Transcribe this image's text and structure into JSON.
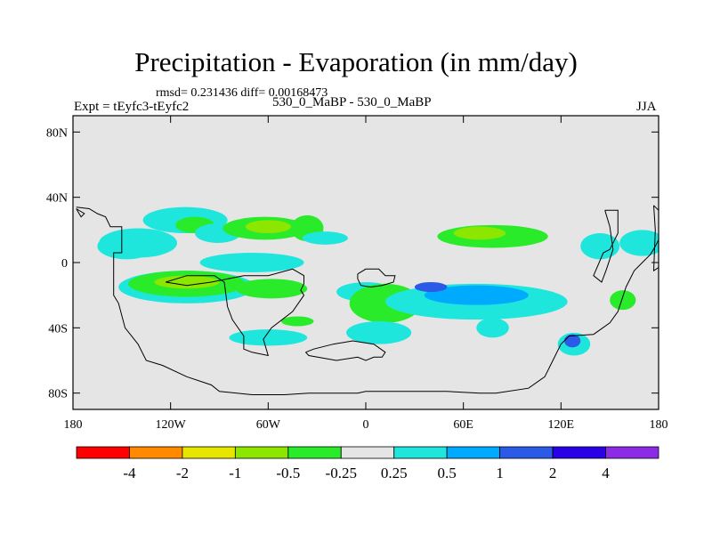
{
  "title": "Precipitation - Evaporation (in mm/day)",
  "stats_text": "rmsd= 0.231436 diff= 0.00168473",
  "experiment_text": "Expt = tEyfc3-tEyfc2",
  "case_text": "530_0_MaBP - 530_0_MaBP",
  "season_text": "JJA",
  "colors": {
    "background": "#e5e5e5",
    "coastline": "#000000"
  },
  "chart_data": {
    "type": "heatmap",
    "title": "Precipitation - Evaporation (in mm/day)",
    "variable": "P-E",
    "units": "mm/day",
    "x_axis": {
      "range": [
        -180,
        180
      ],
      "ticks": [
        -180,
        -120,
        -60,
        0,
        60,
        120,
        180
      ],
      "tick_labels": [
        "180",
        "120W",
        "60W",
        "0",
        "60E",
        "120E",
        "180"
      ]
    },
    "y_axis": {
      "range": [
        -90,
        90
      ],
      "ticks": [
        80,
        40,
        0,
        -40,
        -80
      ],
      "tick_labels": [
        "80N",
        "40N",
        "0",
        "40S",
        "80S"
      ]
    },
    "colorbar": {
      "levels": [
        "-4",
        "-2",
        "-1",
        "-0.5",
        "-0.25",
        "0.25",
        "0.5",
        "1",
        "2",
        "4"
      ],
      "colors": [
        "#ff0000",
        "#ff8a00",
        "#e6e600",
        "#8ce600",
        "#2aeb2a",
        "#e5e5e5",
        "#1ee6dc",
        "#00aaff",
        "#2a5ae6",
        "#2a00e6",
        "#8c2ae6"
      ]
    },
    "anomalies": [
      {
        "lon": -147,
        "lat": 10,
        "w": 18,
        "h": 8,
        "fill": "#1ee6dc"
      },
      {
        "lon": -140,
        "lat": 12,
        "w": 24,
        "h": 9,
        "fill": "#1ee6dc"
      },
      {
        "lon": -111,
        "lat": 26,
        "w": 26,
        "h": 8,
        "fill": "#1ee6dc"
      },
      {
        "lon": -105,
        "lat": 23,
        "w": 12,
        "h": 5,
        "fill": "#2aeb2a"
      },
      {
        "lon": -91,
        "lat": 18,
        "w": 14,
        "h": 6,
        "fill": "#1ee6dc"
      },
      {
        "lon": -62,
        "lat": 21,
        "w": 26,
        "h": 7,
        "fill": "#2aeb2a"
      },
      {
        "lon": -60,
        "lat": 22,
        "w": 14,
        "h": 4,
        "fill": "#8ce600"
      },
      {
        "lon": -36,
        "lat": 21,
        "w": 10,
        "h": 8,
        "fill": "#2aeb2a"
      },
      {
        "lon": -25,
        "lat": 15,
        "w": 14,
        "h": 4,
        "fill": "#1ee6dc"
      },
      {
        "lon": -70,
        "lat": 0,
        "w": 32,
        "h": 6,
        "fill": "#1ee6dc"
      },
      {
        "lon": -110,
        "lat": -15,
        "w": 42,
        "h": 10,
        "fill": "#1ee6dc"
      },
      {
        "lon": -110,
        "lat": -13,
        "w": 36,
        "h": 8,
        "fill": "#2aeb2a"
      },
      {
        "lon": -110,
        "lat": -12,
        "w": 20,
        "h": 4,
        "fill": "#8ce600"
      },
      {
        "lon": -58,
        "lat": -16,
        "w": 22,
        "h": 6,
        "fill": "#2aeb2a"
      },
      {
        "lon": 0,
        "lat": -18,
        "w": 18,
        "h": 6,
        "fill": "#1ee6dc"
      },
      {
        "lon": 12,
        "lat": -25,
        "w": 22,
        "h": 12,
        "fill": "#2aeb2a"
      },
      {
        "lon": 8,
        "lat": -43,
        "w": 20,
        "h": 7,
        "fill": "#1ee6dc"
      },
      {
        "lon": 68,
        "lat": -24,
        "w": 56,
        "h": 11,
        "fill": "#1ee6dc"
      },
      {
        "lon": 68,
        "lat": -20,
        "w": 32,
        "h": 6,
        "fill": "#00aaff"
      },
      {
        "lon": 40,
        "lat": -15,
        "w": 10,
        "h": 3,
        "fill": "#2a5ae6"
      },
      {
        "lon": 78,
        "lat": 16,
        "w": 34,
        "h": 7,
        "fill": "#2aeb2a"
      },
      {
        "lon": 70,
        "lat": 18,
        "w": 16,
        "h": 4,
        "fill": "#8ce600"
      },
      {
        "lon": 144,
        "lat": 10,
        "w": 12,
        "h": 8,
        "fill": "#1ee6dc"
      },
      {
        "lon": 128,
        "lat": -50,
        "w": 10,
        "h": 7,
        "fill": "#1ee6dc"
      },
      {
        "lon": 127,
        "lat": -48,
        "w": 5,
        "h": 4,
        "fill": "#2a5ae6"
      },
      {
        "lon": 170,
        "lat": 12,
        "w": 14,
        "h": 8,
        "fill": "#1ee6dc"
      },
      {
        "lon": -60,
        "lat": -46,
        "w": 24,
        "h": 5,
        "fill": "#1ee6dc"
      },
      {
        "lon": -42,
        "lat": -36,
        "w": 10,
        "h": 3,
        "fill": "#2aeb2a"
      },
      {
        "lon": 78,
        "lat": -40,
        "w": 10,
        "h": 6,
        "fill": "#1ee6dc"
      },
      {
        "lon": 158,
        "lat": -23,
        "w": 8,
        "h": 6,
        "fill": "#2aeb2a"
      }
    ],
    "coastlines": [
      [
        [
          -178,
          34
        ],
        [
          -170,
          33
        ],
        [
          -165,
          30
        ],
        [
          -160,
          28
        ],
        [
          -157,
          22
        ],
        [
          -150,
          22
        ],
        [
          -150,
          6
        ],
        [
          -155,
          6
        ],
        [
          -155,
          -20
        ],
        [
          -152,
          -25
        ],
        [
          -148,
          -40
        ],
        [
          -140,
          -50
        ],
        [
          -135,
          -60
        ],
        [
          -125,
          -63
        ],
        [
          -110,
          -70
        ],
        [
          -95,
          -75
        ],
        [
          -90,
          -79
        ],
        [
          -70,
          -81
        ],
        [
          -50,
          -81
        ],
        [
          -35,
          -80
        ],
        [
          -20,
          -80
        ],
        [
          -5,
          -80
        ],
        [
          0,
          -79
        ],
        [
          20,
          -79
        ],
        [
          50,
          -79
        ],
        [
          70,
          -80
        ],
        [
          80,
          -80
        ],
        [
          100,
          -77
        ],
        [
          110,
          -70
        ],
        [
          115,
          -60
        ],
        [
          120,
          -50
        ],
        [
          125,
          -45
        ],
        [
          140,
          -44
        ],
        [
          150,
          -37
        ],
        [
          155,
          -30
        ],
        [
          160,
          -15
        ],
        [
          165,
          -5
        ],
        [
          170,
          0
        ],
        [
          175,
          5
        ],
        [
          178,
          10
        ],
        [
          180,
          14
        ]
      ],
      [
        [
          -123,
          -12
        ],
        [
          -110,
          -8
        ],
        [
          -93,
          -8
        ],
        [
          -87,
          -12
        ],
        [
          -85,
          -27
        ],
        [
          -82,
          -35
        ],
        [
          -75,
          -45
        ],
        [
          -75,
          -53
        ],
        [
          -70,
          -55
        ],
        [
          -60,
          -57
        ],
        [
          -63,
          -47
        ],
        [
          -58,
          -40
        ],
        [
          -45,
          -30
        ],
        [
          -38,
          -20
        ],
        [
          -40,
          -17
        ],
        [
          -38,
          -13
        ],
        [
          -38,
          -8
        ],
        [
          -45,
          -4
        ],
        [
          -60,
          -8
        ],
        [
          -75,
          -8
        ],
        [
          -95,
          -12
        ],
        [
          -110,
          -14
        ],
        [
          -123,
          -12
        ]
      ],
      [
        [
          -37,
          -55
        ],
        [
          -35,
          -57
        ],
        [
          -18,
          -60
        ],
        [
          -5,
          -58
        ],
        [
          0,
          -60
        ],
        [
          5,
          -58
        ],
        [
          10,
          -58
        ],
        [
          12,
          -55
        ],
        [
          5,
          -50
        ],
        [
          -8,
          -48
        ],
        [
          -20,
          -50
        ],
        [
          -32,
          -53
        ],
        [
          -37,
          -55
        ]
      ],
      [
        [
          -5,
          -7
        ],
        [
          0,
          -4
        ],
        [
          8,
          -4
        ],
        [
          12,
          -8
        ],
        [
          18,
          -8
        ],
        [
          17,
          -12
        ],
        [
          10,
          -14
        ],
        [
          3,
          -15
        ],
        [
          -3,
          -14
        ],
        [
          -5,
          -10
        ],
        [
          -5,
          -7
        ]
      ],
      [
        [
          147,
          32
        ],
        [
          155,
          32
        ],
        [
          155,
          18
        ],
        [
          150,
          8
        ],
        [
          146,
          6
        ],
        [
          140,
          -8
        ],
        [
          145,
          -12
        ],
        [
          148,
          -4
        ],
        [
          152,
          8
        ],
        [
          150,
          22
        ],
        [
          147,
          32
        ]
      ],
      [
        [
          177,
          35
        ],
        [
          180,
          32
        ],
        [
          180,
          -3
        ],
        [
          177,
          -5
        ],
        [
          178,
          20
        ],
        [
          177,
          35
        ]
      ],
      [
        [
          -178,
          33
        ],
        [
          -175,
          28
        ],
        [
          -173,
          30
        ],
        [
          -178,
          33
        ]
      ]
    ]
  }
}
